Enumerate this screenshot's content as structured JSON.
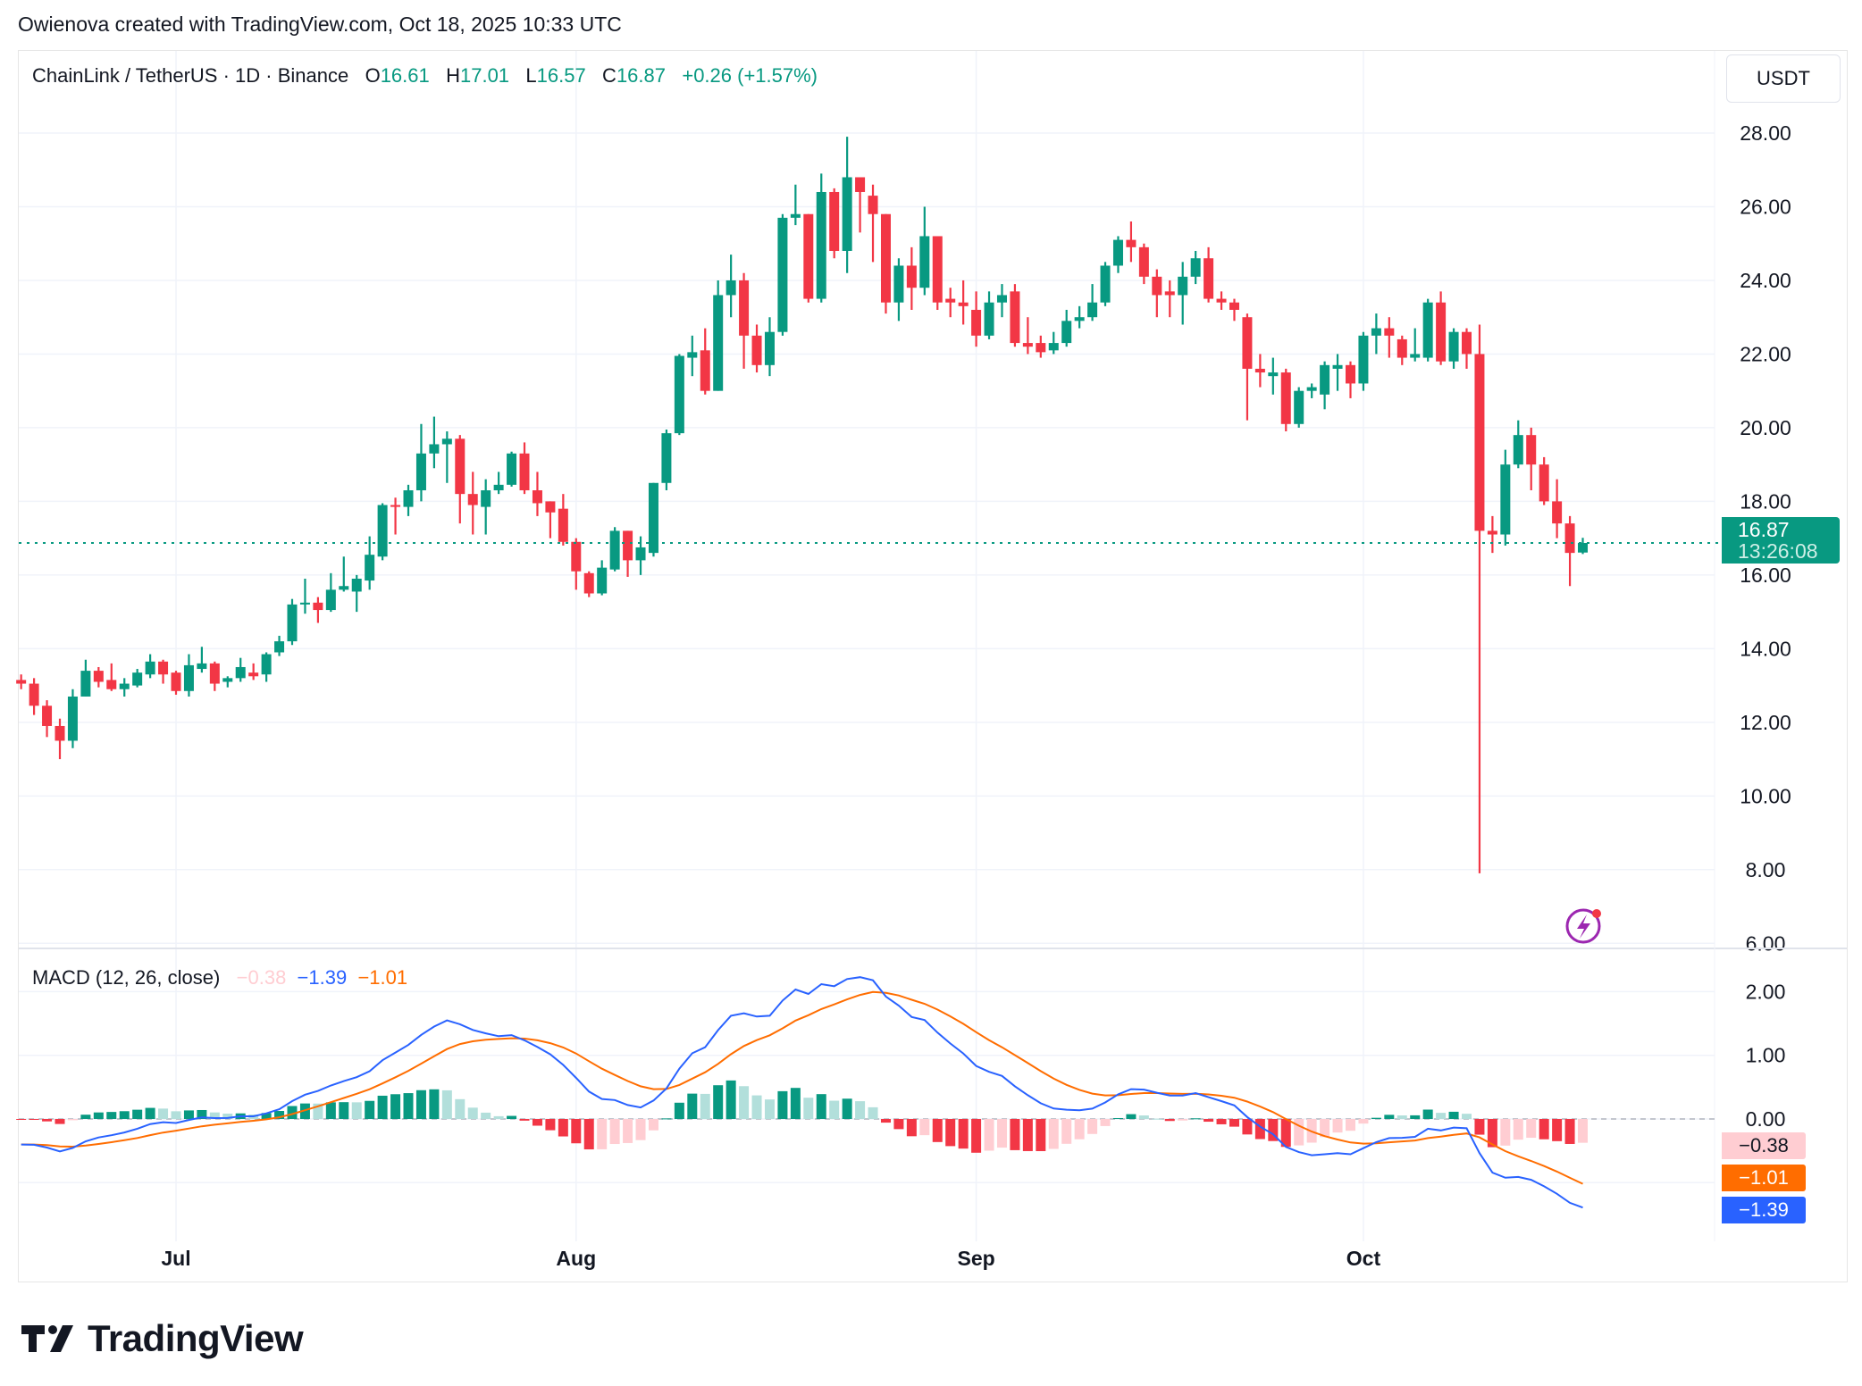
{
  "credit": "Owienova created with TradingView.com, Oct 18, 2025 10:33 UTC",
  "legend": {
    "symbol": "ChainLink / TetherUS · 1D · Binance",
    "o_label": "O",
    "o": "16.61",
    "h_label": "H",
    "h": "17.01",
    "l_label": "L",
    "l": "16.57",
    "c_label": "C",
    "c": "16.87",
    "change": "+0.26 (+1.57%)"
  },
  "currency": "USDT",
  "last_price": {
    "value": "16.87",
    "countdown": "13:26:08"
  },
  "macd_legend": {
    "title": "MACD (12, 26, close)",
    "hist": "−0.38",
    "macd": "−1.39",
    "signal": "−1.01"
  },
  "macd_labels": {
    "hist": "−0.38",
    "signal": "−1.01",
    "macd": "−1.39"
  },
  "logo": "TradingView",
  "colors": {
    "up": "#089981",
    "down": "#F23645",
    "macd": "#2962FF",
    "signal": "#FF6D00",
    "up_light": "#B2DFDB",
    "down_light": "#FFCDD2"
  },
  "chart_data": {
    "type": "candlestick",
    "title": "ChainLink / TetherUS · 1D · Binance",
    "start_date": "2025-06-19",
    "x_ticks": [
      {
        "label": "Jul",
        "day": 12
      },
      {
        "label": "Aug",
        "day": 43
      },
      {
        "label": "Sep",
        "day": 74
      },
      {
        "label": "Oct",
        "day": 104
      }
    ],
    "y_ticks": [
      "28.00",
      "26.00",
      "24.00",
      "22.00",
      "20.00",
      "18.00",
      "16.00",
      "14.00",
      "12.00",
      "10.00",
      "8.00",
      "6.00"
    ],
    "ylim": [
      6,
      29.2
    ],
    "macd_ticks": [
      "2.00",
      "1.00",
      "0.00"
    ],
    "macd_ylim": [
      -1.6,
      2.6
    ],
    "ohlc": [
      [
        13.15,
        13.3,
        12.9,
        13.05
      ],
      [
        13.05,
        13.2,
        12.2,
        12.45
      ],
      [
        12.45,
        12.6,
        11.6,
        11.9
      ],
      [
        11.9,
        12.1,
        11.0,
        11.5
      ],
      [
        11.5,
        12.9,
        11.3,
        12.7
      ],
      [
        12.7,
        13.7,
        12.7,
        13.4
      ],
      [
        13.4,
        13.5,
        12.95,
        13.1
      ],
      [
        13.15,
        13.6,
        12.85,
        12.9
      ],
      [
        12.9,
        13.2,
        12.7,
        13.05
      ],
      [
        13.0,
        13.45,
        12.95,
        13.35
      ],
      [
        13.3,
        13.85,
        13.2,
        13.65
      ],
      [
        13.65,
        13.7,
        13.05,
        13.3
      ],
      [
        13.35,
        13.4,
        12.75,
        12.85
      ],
      [
        12.85,
        13.85,
        12.7,
        13.55
      ],
      [
        13.45,
        14.05,
        13.35,
        13.6
      ],
      [
        13.6,
        13.65,
        12.85,
        13.05
      ],
      [
        13.1,
        13.25,
        12.95,
        13.2
      ],
      [
        13.2,
        13.75,
        13.1,
        13.5
      ],
      [
        13.35,
        13.6,
        13.15,
        13.25
      ],
      [
        13.3,
        13.9,
        13.1,
        13.85
      ],
      [
        13.9,
        14.35,
        13.8,
        14.2
      ],
      [
        14.2,
        15.35,
        14.1,
        15.2
      ],
      [
        15.2,
        15.9,
        14.95,
        15.25
      ],
      [
        15.25,
        15.4,
        14.7,
        15.05
      ],
      [
        15.05,
        16.05,
        15.0,
        15.6
      ],
      [
        15.6,
        16.5,
        15.55,
        15.7
      ],
      [
        15.55,
        16.0,
        15.0,
        15.9
      ],
      [
        15.85,
        17.05,
        15.6,
        16.55
      ],
      [
        16.5,
        17.95,
        16.4,
        17.9
      ],
      [
        17.9,
        18.1,
        17.1,
        17.85
      ],
      [
        17.85,
        18.45,
        17.6,
        18.3
      ],
      [
        18.3,
        20.1,
        18.0,
        19.3
      ],
      [
        19.3,
        20.3,
        18.9,
        19.55
      ],
      [
        19.55,
        19.9,
        18.5,
        19.7
      ],
      [
        19.7,
        19.8,
        17.4,
        18.2
      ],
      [
        18.2,
        18.8,
        17.1,
        17.9
      ],
      [
        17.85,
        18.6,
        17.1,
        18.3
      ],
      [
        18.3,
        18.8,
        18.2,
        18.45
      ],
      [
        18.45,
        19.35,
        18.4,
        19.3
      ],
      [
        19.3,
        19.6,
        18.2,
        18.3
      ],
      [
        18.3,
        18.8,
        17.6,
        17.95
      ],
      [
        18.0,
        18.0,
        17.0,
        17.7
      ],
      [
        17.8,
        18.2,
        16.8,
        16.9
      ],
      [
        16.9,
        17.0,
        15.6,
        16.1
      ],
      [
        16.05,
        16.1,
        15.4,
        15.5
      ],
      [
        15.5,
        16.4,
        15.45,
        16.2
      ],
      [
        16.15,
        17.3,
        16.1,
        17.2
      ],
      [
        17.2,
        17.2,
        15.95,
        16.4
      ],
      [
        16.4,
        17.05,
        16.0,
        16.75
      ],
      [
        16.6,
        18.5,
        16.5,
        18.5
      ],
      [
        18.5,
        19.95,
        18.3,
        19.85
      ],
      [
        19.85,
        22.0,
        19.8,
        21.95
      ],
      [
        21.9,
        22.5,
        21.4,
        22.05
      ],
      [
        22.1,
        22.7,
        20.9,
        21.0
      ],
      [
        21.0,
        24.0,
        21.0,
        23.6
      ],
      [
        23.6,
        24.7,
        23.0,
        24.0
      ],
      [
        24.0,
        24.2,
        21.6,
        22.5
      ],
      [
        22.5,
        22.8,
        21.5,
        21.7
      ],
      [
        21.7,
        23.0,
        21.4,
        22.6
      ],
      [
        22.6,
        25.8,
        22.5,
        25.7
      ],
      [
        25.7,
        26.6,
        25.5,
        25.8
      ],
      [
        25.8,
        25.8,
        23.4,
        23.5
      ],
      [
        23.5,
        26.9,
        23.4,
        26.4
      ],
      [
        26.4,
        26.5,
        24.6,
        24.8
      ],
      [
        24.8,
        27.9,
        24.2,
        26.8
      ],
      [
        26.8,
        26.8,
        25.3,
        26.4
      ],
      [
        26.3,
        26.6,
        24.5,
        25.8
      ],
      [
        25.8,
        25.8,
        23.1,
        23.4
      ],
      [
        23.4,
        24.6,
        22.9,
        24.4
      ],
      [
        24.4,
        24.9,
        23.2,
        23.8
      ],
      [
        23.8,
        26.0,
        23.6,
        25.2
      ],
      [
        25.2,
        25.2,
        23.2,
        23.4
      ],
      [
        23.5,
        23.8,
        23.0,
        23.4
      ],
      [
        23.4,
        24.0,
        22.8,
        23.3
      ],
      [
        23.2,
        23.7,
        22.2,
        22.5
      ],
      [
        22.5,
        23.7,
        22.4,
        23.4
      ],
      [
        23.4,
        23.9,
        23.0,
        23.6
      ],
      [
        23.7,
        23.9,
        22.2,
        22.3
      ],
      [
        22.3,
        23.0,
        22.0,
        22.2
      ],
      [
        22.3,
        22.5,
        21.9,
        22.05
      ],
      [
        22.1,
        22.6,
        22.0,
        22.3
      ],
      [
        22.3,
        23.2,
        22.2,
        22.9
      ],
      [
        22.9,
        23.3,
        22.7,
        23.0
      ],
      [
        23.0,
        23.9,
        22.9,
        23.4
      ],
      [
        23.4,
        24.5,
        23.3,
        24.4
      ],
      [
        24.4,
        25.2,
        24.2,
        25.1
      ],
      [
        25.1,
        25.6,
        24.5,
        24.9
      ],
      [
        24.9,
        25.0,
        23.9,
        24.1
      ],
      [
        24.1,
        24.3,
        23.0,
        23.6
      ],
      [
        23.7,
        24.0,
        23.0,
        23.6
      ],
      [
        23.6,
        24.5,
        22.8,
        24.1
      ],
      [
        24.1,
        24.8,
        23.9,
        24.6
      ],
      [
        24.6,
        24.9,
        23.4,
        23.5
      ],
      [
        23.5,
        23.7,
        23.2,
        23.4
      ],
      [
        23.4,
        23.5,
        22.9,
        23.2
      ],
      [
        23.0,
        23.1,
        20.2,
        21.6
      ],
      [
        21.6,
        22.0,
        21.1,
        21.5
      ],
      [
        21.4,
        21.9,
        20.9,
        21.5
      ],
      [
        21.5,
        21.6,
        19.9,
        20.1
      ],
      [
        20.1,
        21.1,
        20.0,
        21.0
      ],
      [
        21.0,
        21.2,
        20.8,
        21.1
      ],
      [
        20.9,
        21.8,
        20.5,
        21.7
      ],
      [
        21.6,
        22.0,
        21.0,
        21.7
      ],
      [
        21.7,
        21.8,
        20.8,
        21.2
      ],
      [
        21.2,
        22.6,
        21.0,
        22.5
      ],
      [
        22.5,
        23.1,
        22.0,
        22.7
      ],
      [
        22.7,
        23.0,
        21.9,
        22.5
      ],
      [
        22.4,
        22.5,
        21.7,
        21.9
      ],
      [
        21.9,
        22.7,
        21.8,
        22.0
      ],
      [
        21.9,
        23.5,
        21.8,
        23.4
      ],
      [
        23.4,
        23.7,
        21.7,
        21.8
      ],
      [
        21.8,
        22.7,
        21.6,
        22.6
      ],
      [
        22.6,
        22.7,
        21.6,
        22.0
      ],
      [
        22.0,
        22.8,
        7.9,
        17.2
      ],
      [
        17.2,
        17.6,
        16.6,
        17.1
      ],
      [
        17.1,
        19.4,
        16.8,
        19.0
      ],
      [
        19.0,
        20.2,
        18.9,
        19.8
      ],
      [
        19.8,
        20.0,
        18.3,
        19.0
      ],
      [
        19.0,
        19.2,
        17.9,
        18.0
      ],
      [
        18.0,
        18.6,
        17.0,
        17.4
      ],
      [
        17.4,
        17.6,
        15.7,
        16.6
      ],
      [
        16.61,
        17.01,
        16.57,
        16.87
      ]
    ],
    "macd_params": {
      "fast": 12,
      "slow": 26,
      "signal": 9,
      "source": "close"
    },
    "macd_last": {
      "macd": -1.39,
      "signal": -1.01,
      "histogram": -0.38
    }
  }
}
